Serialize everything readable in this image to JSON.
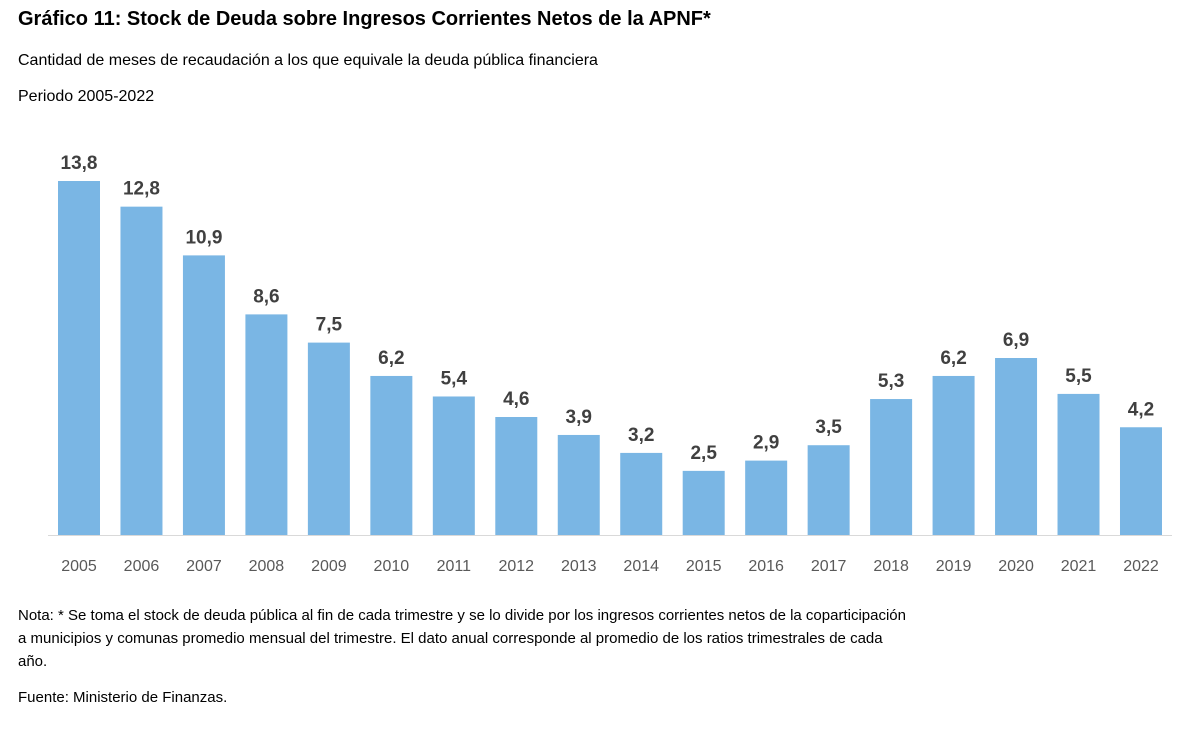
{
  "title": "Gráfico 11: Stock de Deuda sobre Ingresos Corrientes Netos de la APNF*",
  "subtitle": "Cantidad de meses de recaudación a los que equivale la deuda pública financiera",
  "period": "Periodo 2005-2022",
  "note_lines": [
    "Nota: * Se toma el stock de deuda pública al fin de cada trimestre y se lo divide por los ingresos corrientes netos de la coparticipación",
    "a municipios y comunas promedio mensual del trimestre. El dato anual corresponde al promedio de los ratios trimestrales de cada",
    "año."
  ],
  "source": "Fuente: Ministerio de Finanzas.",
  "chart_data": {
    "type": "bar",
    "categories": [
      "2005",
      "2006",
      "2007",
      "2008",
      "2009",
      "2010",
      "2011",
      "2012",
      "2013",
      "2014",
      "2015",
      "2016",
      "2017",
      "2018",
      "2019",
      "2020",
      "2021",
      "2022"
    ],
    "values": [
      13.8,
      12.8,
      10.9,
      8.6,
      7.5,
      6.2,
      5.4,
      4.6,
      3.9,
      3.2,
      2.5,
      2.9,
      3.5,
      5.3,
      6.2,
      6.9,
      5.5,
      4.2
    ],
    "data_labels": [
      "13,8",
      "12,8",
      "10,9",
      "8,6",
      "7,5",
      "6,2",
      "5,4",
      "4,6",
      "3,9",
      "3,2",
      "2,5",
      "2,9",
      "3,5",
      "5,3",
      "6,2",
      "6,9",
      "5,5",
      "4,2"
    ],
    "ylim": [
      0,
      14
    ],
    "grid": false,
    "bar_color": "#7AB6E4"
  }
}
